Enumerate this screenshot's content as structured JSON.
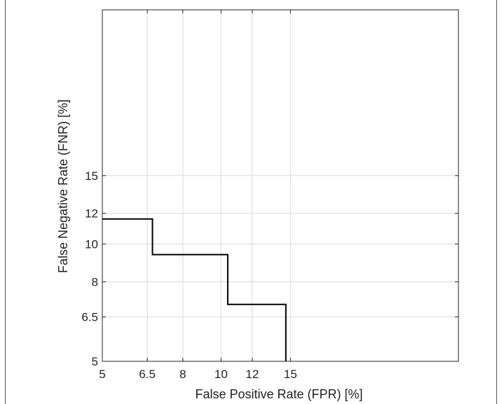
{
  "chart_data": {
    "type": "line",
    "title": "",
    "xlabel": "False Positive Rate (FPR) [%]",
    "ylabel": "False Negative Rate (FNR) [%]",
    "x_scale": "log",
    "y_scale": "log",
    "xlim": [
      5,
      40
    ],
    "ylim": [
      5,
      40
    ],
    "xticks": [
      5,
      6.5,
      8,
      10,
      12,
      15
    ],
    "xtick_labels": [
      "5",
      "6.5",
      "8",
      "10",
      "12",
      "15"
    ],
    "yticks": [
      5,
      6.5,
      8,
      10,
      12,
      15
    ],
    "ytick_labels": [
      "5",
      "6.5",
      "8",
      "10",
      "12",
      "15"
    ],
    "grid": true,
    "series": [
      {
        "x": [
          5,
          6.7,
          6.7,
          10.4,
          10.4,
          14.6,
          14.6
        ],
        "y": [
          11.6,
          11.6,
          9.4,
          9.4,
          7.0,
          7.0,
          5.0
        ],
        "color": "#000000",
        "step": true
      }
    ]
  }
}
